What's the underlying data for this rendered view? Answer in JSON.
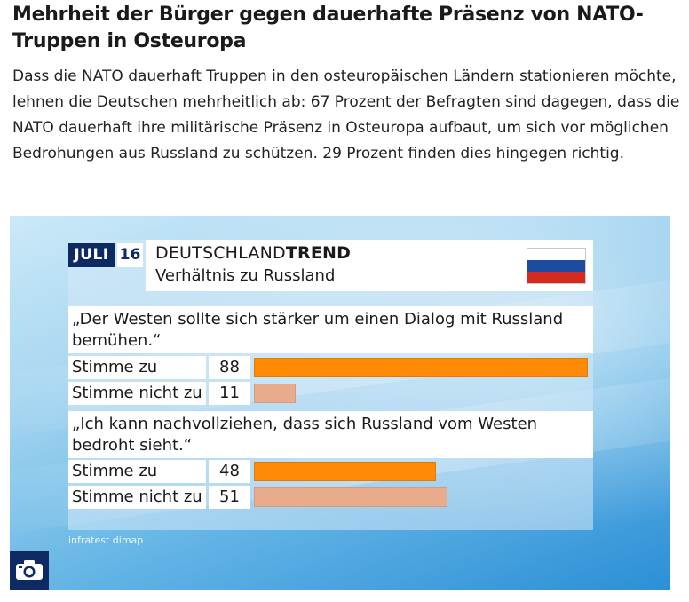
{
  "article": {
    "headline": "Mehrheit der Bürger gegen dauerhafte Präsenz von NATO-Truppen in Osteuropa",
    "lead": "Dass die NATO dauerhaft Truppen in den osteuropäischen Ländern stationieren möchte, lehnen die Deutschen mehrheitlich ab: 67 Prozent der Befragten sind dagegen, dass die NATO dauerhaft ihre militärische Präsenz in Osteuropa aufbaut, um sich vor möglichen Bedrohungen aus Russland zu schützen. 29 Prozent finden dies hingegen richtig."
  },
  "graphic": {
    "month": "JULI",
    "day": "16",
    "brand_regular": "DEUTSCHLAND",
    "brand_bold": "TREND",
    "subject": "Verhältnis zu Russland",
    "source": "infratest dimap",
    "flag_colors": [
      "#ffffff",
      "#1c4ba0",
      "#d52b1e"
    ],
    "colors": {
      "agree": "#ff8a05",
      "disagree": "#e8ac8d",
      "dark_blue": "#0d2a63"
    }
  },
  "chart_data": {
    "type": "bar",
    "title": "Verhältnis zu Russland",
    "xlim": [
      0,
      88
    ],
    "questions": [
      {
        "text": "„Der Westen sollte sich stärker um einen Dialog mit Russland bemühen.“",
        "rows": [
          {
            "label": "Stimme zu",
            "value": 88
          },
          {
            "label": "Stimme nicht zu",
            "value": 11
          }
        ]
      },
      {
        "text": "„Ich kann nachvollziehen, dass sich Russland vom Westen bedroht sieht.“",
        "rows": [
          {
            "label": "Stimme zu",
            "value": 48
          },
          {
            "label": "Stimme nicht zu",
            "value": 51
          }
        ]
      }
    ]
  }
}
